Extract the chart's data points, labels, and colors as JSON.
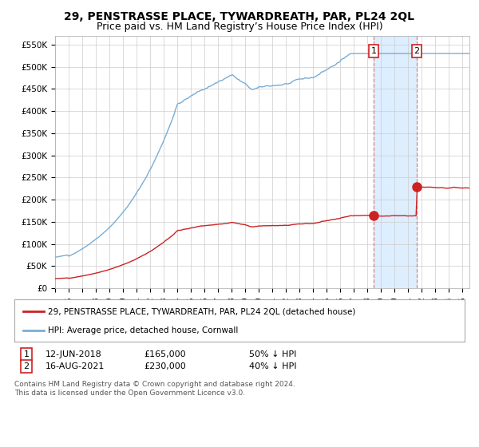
{
  "title": "29, PENSTRASSE PLACE, TYWARDREATH, PAR, PL24 2QL",
  "subtitle": "Price paid vs. HM Land Registry’s House Price Index (HPI)",
  "title_fontsize": 10,
  "subtitle_fontsize": 9,
  "ylim": [
    0,
    570000
  ],
  "yticks": [
    0,
    50000,
    100000,
    150000,
    200000,
    250000,
    300000,
    350000,
    400000,
    450000,
    500000,
    550000
  ],
  "ytick_labels": [
    "£0",
    "£50K",
    "£100K",
    "£150K",
    "£200K",
    "£250K",
    "£300K",
    "£350K",
    "£400K",
    "£450K",
    "£500K",
    "£550K"
  ],
  "hpi_color": "#7aadd4",
  "price_color": "#cc2222",
  "sale1_x": 2018.44,
  "sale1_y": 165000,
  "sale2_x": 2021.62,
  "sale2_y": 230000,
  "legend_label_price": "29, PENSTRASSE PLACE, TYWARDREATH, PAR, PL24 2QL (detached house)",
  "legend_label_hpi": "HPI: Average price, detached house, Cornwall",
  "bg_color": "#ffffff",
  "plot_bg_color": "#ffffff",
  "grid_color": "#cccccc",
  "shaded_region_color": "#ddeeff",
  "shaded_x_start": 2018.44,
  "shaded_x_end": 2021.62,
  "xlim_start": 1995.0,
  "xlim_end": 2025.5
}
